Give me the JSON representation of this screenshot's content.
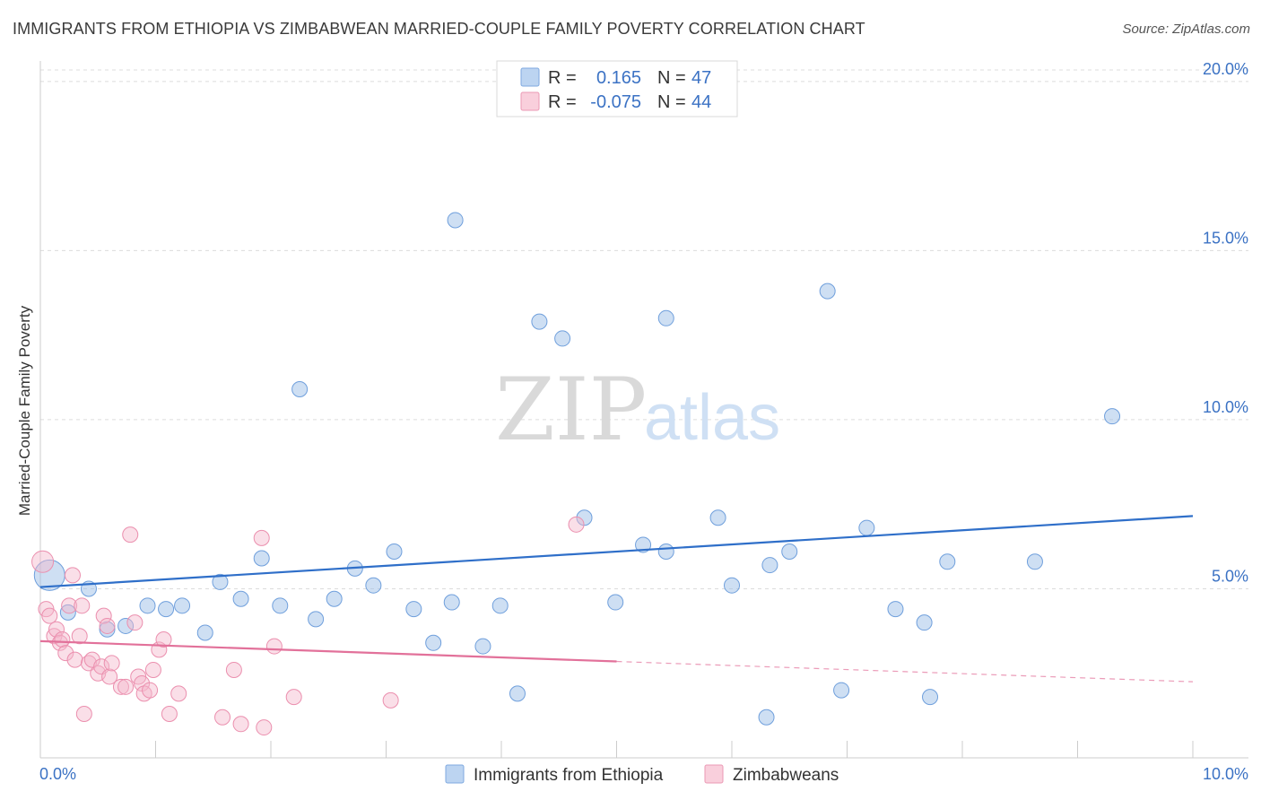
{
  "header": {
    "title": "IMMIGRANTS FROM ETHIOPIA VS ZIMBABWEAN MARRIED-COUPLE FAMILY POVERTY CORRELATION CHART",
    "source": "Source: ZipAtlas.com"
  },
  "watermark": {
    "zip": "ZIP",
    "atlas": "atlas"
  },
  "legend": {
    "series1": {
      "r_label": "R =",
      "r_value": "0.165",
      "n_label": "N =",
      "n_value": "47"
    },
    "series2": {
      "r_label": "R =",
      "r_value": "-0.075",
      "n_label": "N =",
      "n_value": "44"
    }
  },
  "bottom_legend": {
    "series1": "Immigrants from Ethiopia",
    "series2": "Zimbabweans"
  },
  "chart_data": {
    "type": "scatter",
    "title": "IMMIGRANTS FROM ETHIOPIA VS ZIMBABWEAN MARRIED-COUPLE FAMILY POVERTY CORRELATION CHART",
    "xlabel": "",
    "ylabel": "Married-Couple Family Poverty",
    "xlim": [
      0,
      10
    ],
    "ylim": [
      0,
      20.5
    ],
    "x_tick_labels": [
      "0.0%",
      "10.0%"
    ],
    "y_ticks": [
      5,
      10,
      15,
      20
    ],
    "y_tick_labels": [
      "5.0%",
      "10.0%",
      "15.0%",
      "20.0%"
    ],
    "colors": {
      "series1": "#9dbfe8",
      "series1_line": "#2f6fc9",
      "series2": "#f5b7cb",
      "series2_line": "#e2719a",
      "tick": "#3b72c4"
    },
    "series": [
      {
        "name": "Immigrants from Ethiopia",
        "trend": {
          "x": [
            0,
            10
          ],
          "y": [
            5.05,
            7.15
          ]
        },
        "points": [
          [
            0.08,
            5.4
          ],
          [
            0.24,
            4.3
          ],
          [
            0.42,
            5.0
          ],
          [
            0.58,
            3.8
          ],
          [
            0.74,
            3.9
          ],
          [
            0.93,
            4.5
          ],
          [
            1.09,
            4.4
          ],
          [
            1.23,
            4.5
          ],
          [
            1.43,
            3.7
          ],
          [
            1.56,
            5.2
          ],
          [
            1.74,
            4.7
          ],
          [
            1.92,
            5.9
          ],
          [
            2.08,
            4.5
          ],
          [
            2.25,
            10.9
          ],
          [
            2.39,
            4.1
          ],
          [
            2.55,
            4.7
          ],
          [
            2.73,
            5.6
          ],
          [
            2.89,
            5.1
          ],
          [
            3.07,
            6.1
          ],
          [
            3.24,
            4.4
          ],
          [
            3.41,
            3.4
          ],
          [
            3.57,
            4.6
          ],
          [
            3.6,
            15.9
          ],
          [
            3.84,
            3.3
          ],
          [
            3.99,
            4.5
          ],
          [
            4.14,
            1.9
          ],
          [
            4.33,
            12.9
          ],
          [
            4.53,
            12.4
          ],
          [
            4.72,
            7.1
          ],
          [
            4.99,
            4.6
          ],
          [
            5.23,
            6.3
          ],
          [
            5.43,
            13.0
          ],
          [
            5.43,
            6.1
          ],
          [
            5.88,
            7.1
          ],
          [
            6.0,
            5.1
          ],
          [
            6.3,
            1.2
          ],
          [
            6.33,
            5.7
          ],
          [
            6.5,
            6.1
          ],
          [
            6.83,
            13.8
          ],
          [
            6.95,
            2.0
          ],
          [
            7.17,
            6.8
          ],
          [
            7.42,
            4.4
          ],
          [
            7.67,
            4.0
          ],
          [
            7.72,
            1.8
          ],
          [
            7.87,
            5.8
          ],
          [
            8.63,
            5.8
          ],
          [
            9.3,
            10.1
          ]
        ]
      },
      {
        "name": "Zimbabweans",
        "trend": {
          "x": [
            0,
            5.0
          ],
          "y": [
            3.45,
            2.85
          ]
        },
        "trend_dashed": {
          "x": [
            5.0,
            10
          ],
          "y": [
            2.85,
            2.25
          ]
        },
        "points": [
          [
            0.02,
            5.8
          ],
          [
            0.05,
            4.4
          ],
          [
            0.08,
            4.2
          ],
          [
            0.12,
            3.6
          ],
          [
            0.14,
            3.8
          ],
          [
            0.17,
            3.4
          ],
          [
            0.19,
            3.5
          ],
          [
            0.22,
            3.1
          ],
          [
            0.25,
            4.5
          ],
          [
            0.28,
            5.4
          ],
          [
            0.3,
            2.9
          ],
          [
            0.34,
            3.6
          ],
          [
            0.36,
            4.5
          ],
          [
            0.38,
            1.3
          ],
          [
            0.42,
            2.8
          ],
          [
            0.45,
            2.9
          ],
          [
            0.5,
            2.5
          ],
          [
            0.53,
            2.7
          ],
          [
            0.55,
            4.2
          ],
          [
            0.58,
            3.9
          ],
          [
            0.6,
            2.4
          ],
          [
            0.62,
            2.8
          ],
          [
            0.7,
            2.1
          ],
          [
            0.74,
            2.1
          ],
          [
            0.78,
            6.6
          ],
          [
            0.82,
            4.0
          ],
          [
            0.85,
            2.4
          ],
          [
            0.88,
            2.2
          ],
          [
            0.9,
            1.9
          ],
          [
            0.95,
            2.0
          ],
          [
            0.98,
            2.6
          ],
          [
            1.03,
            3.2
          ],
          [
            1.07,
            3.5
          ],
          [
            1.12,
            1.3
          ],
          [
            1.2,
            1.9
          ],
          [
            1.58,
            1.2
          ],
          [
            1.68,
            2.6
          ],
          [
            1.74,
            1.0
          ],
          [
            1.92,
            6.5
          ],
          [
            1.94,
            0.9
          ],
          [
            2.03,
            3.3
          ],
          [
            2.2,
            1.8
          ],
          [
            3.04,
            1.7
          ],
          [
            4.65,
            6.9
          ]
        ]
      }
    ]
  }
}
